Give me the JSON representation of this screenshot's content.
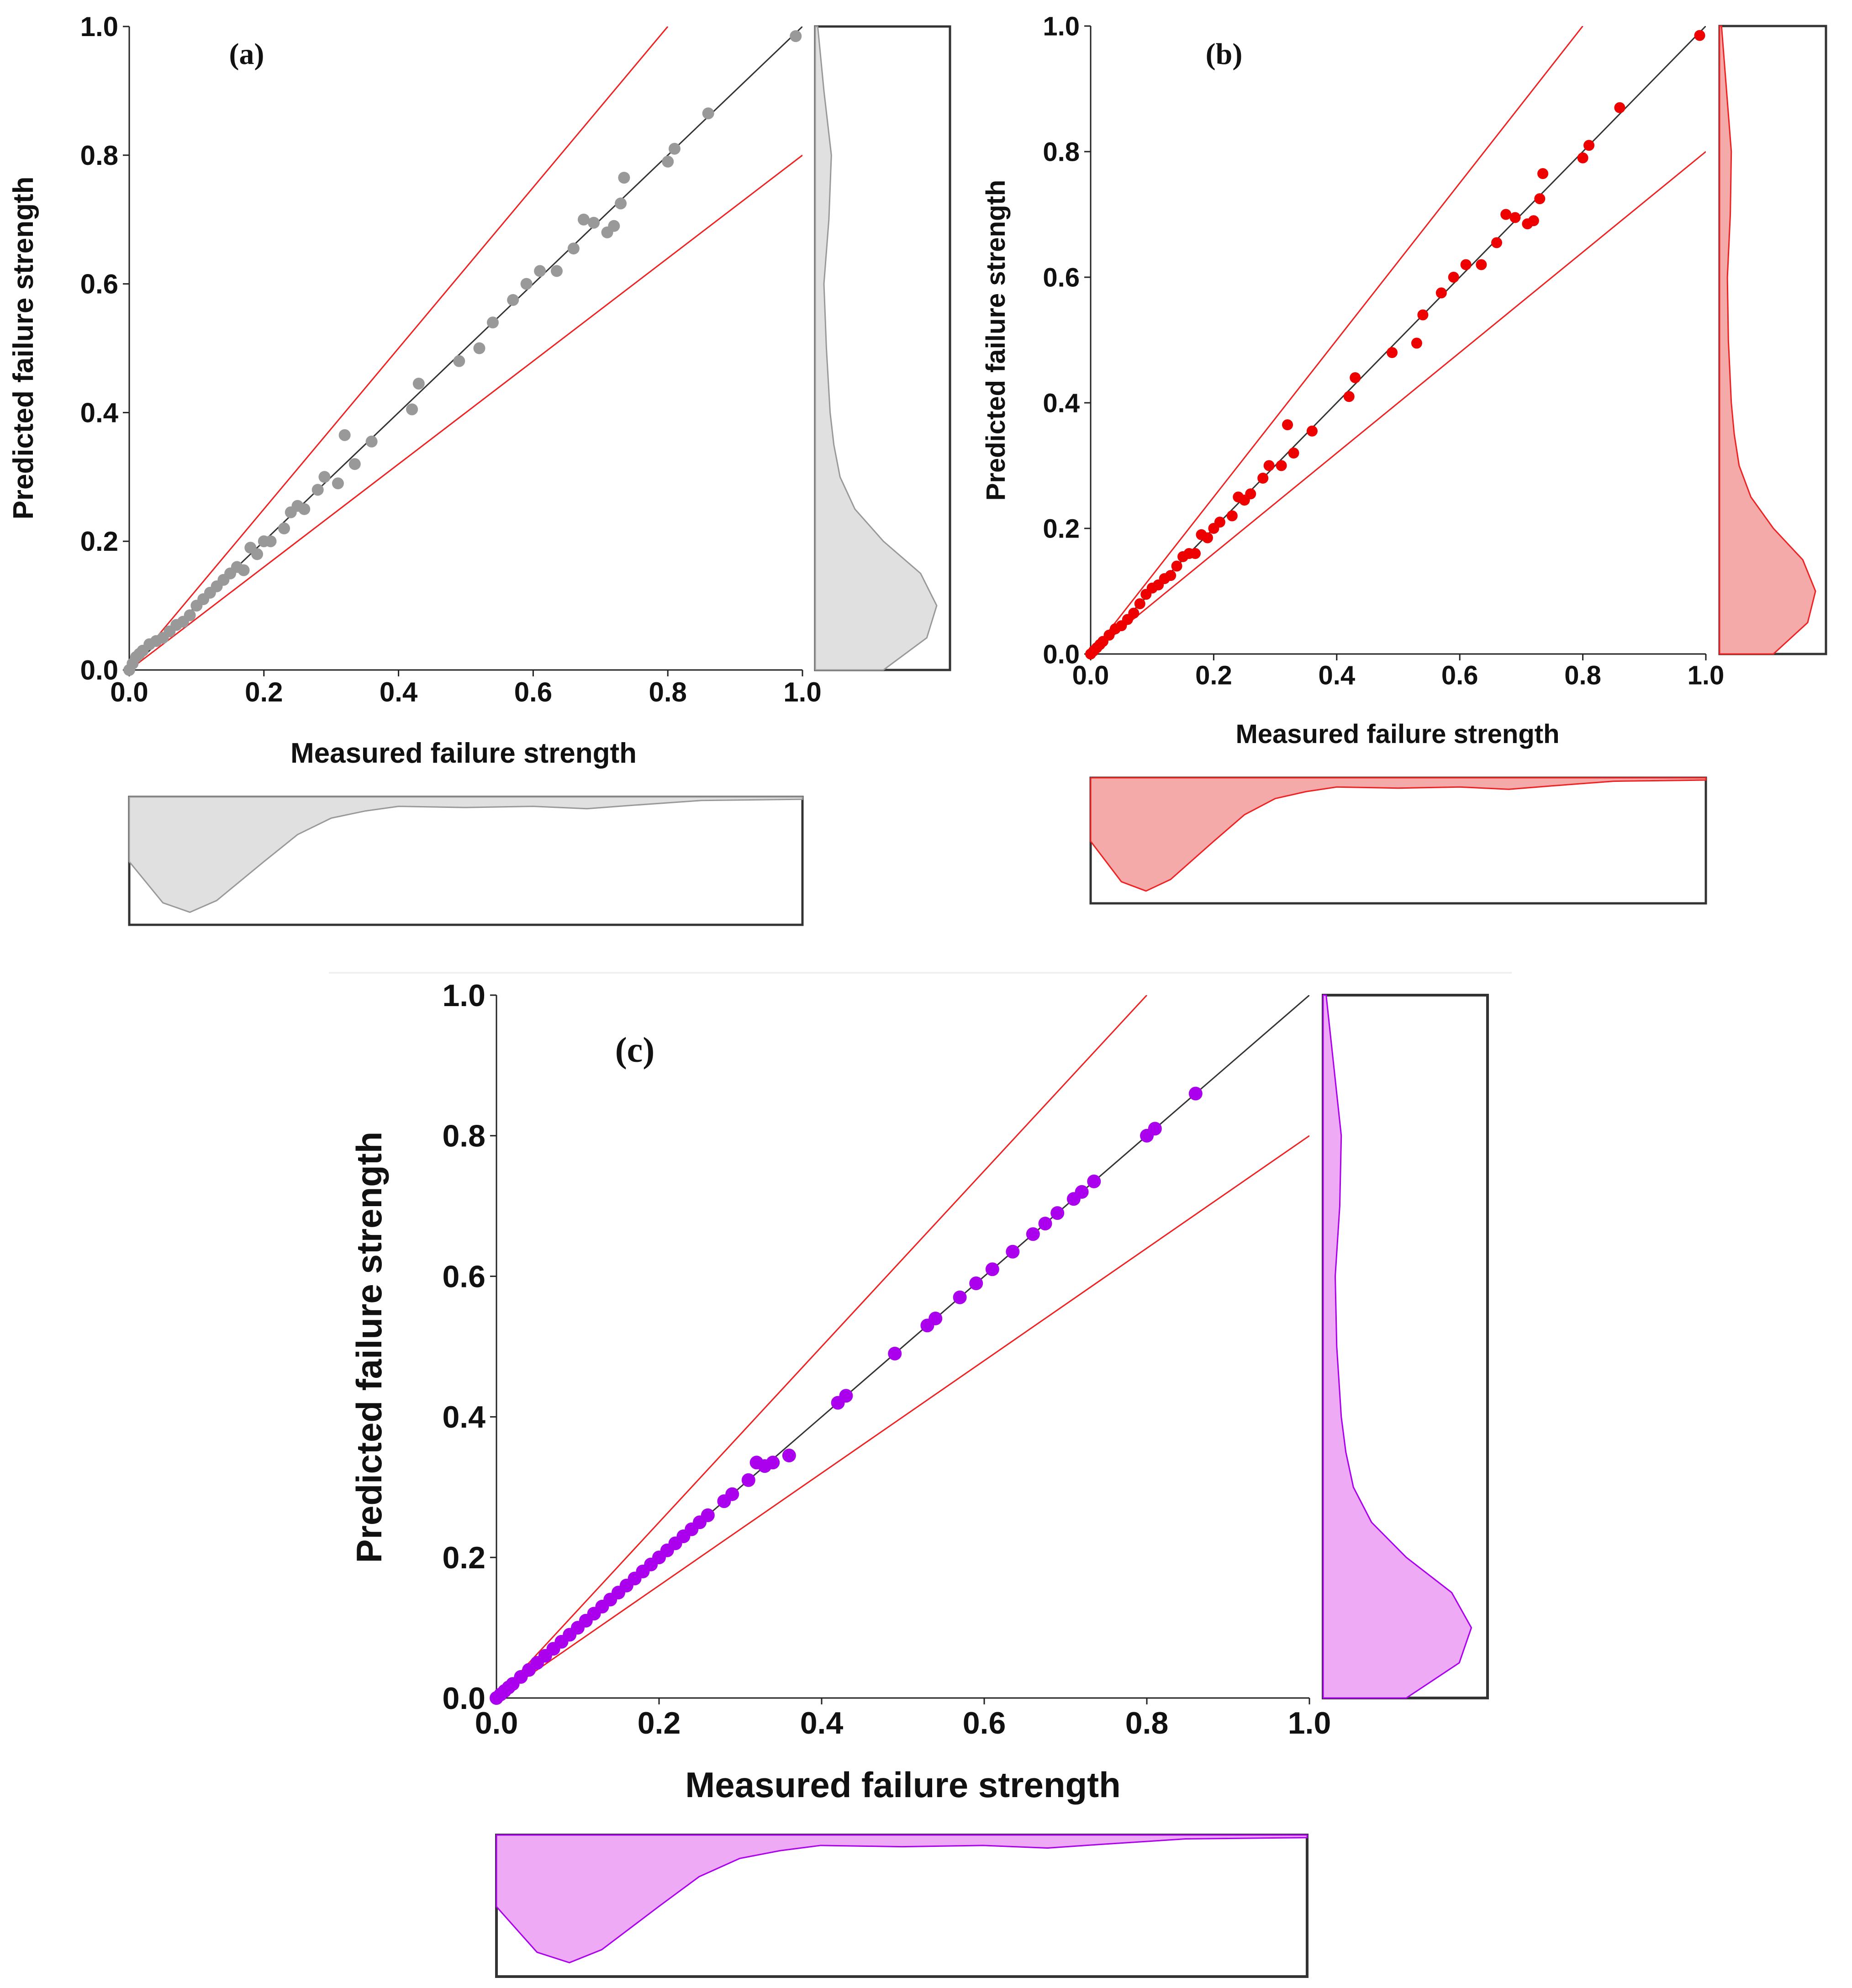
{
  "chart_data": [
    {
      "type": "scatter",
      "panel_label": "(a)",
      "xlabel": "Measured failure strength",
      "ylabel": "Predicted failure strength",
      "xlim": [
        0,
        1
      ],
      "ylim": [
        0,
        1
      ],
      "x_ticks": [
        "0.0",
        "0.2",
        "0.4",
        "0.6",
        "0.8",
        "1.0"
      ],
      "y_ticks": [
        "0.0",
        "0.2",
        "0.4",
        "0.6",
        "0.8",
        "1.0"
      ],
      "reference_lines": [
        {
          "name": "y = x",
          "slope": 1.0,
          "color": "#333333"
        },
        {
          "name": "+25% bound",
          "slope": 1.25,
          "color": "#ee2222"
        },
        {
          "name": "-20% bound",
          "slope": 0.8,
          "color": "#ee2222"
        }
      ],
      "point_color": "#999999",
      "density_fill": "#e0e0e0",
      "density_stroke": "#999999",
      "points": [
        [
          0.0,
          0.0
        ],
        [
          0.005,
          0.01
        ],
        [
          0.01,
          0.02
        ],
        [
          0.015,
          0.025
        ],
        [
          0.02,
          0.03
        ],
        [
          0.03,
          0.04
        ],
        [
          0.04,
          0.045
        ],
        [
          0.05,
          0.05
        ],
        [
          0.06,
          0.06
        ],
        [
          0.07,
          0.07
        ],
        [
          0.08,
          0.075
        ],
        [
          0.09,
          0.085
        ],
        [
          0.1,
          0.1
        ],
        [
          0.11,
          0.11
        ],
        [
          0.12,
          0.12
        ],
        [
          0.13,
          0.13
        ],
        [
          0.14,
          0.14
        ],
        [
          0.15,
          0.15
        ],
        [
          0.16,
          0.16
        ],
        [
          0.17,
          0.155
        ],
        [
          0.18,
          0.19
        ],
        [
          0.19,
          0.18
        ],
        [
          0.2,
          0.2
        ],
        [
          0.21,
          0.2
        ],
        [
          0.23,
          0.22
        ],
        [
          0.24,
          0.245
        ],
        [
          0.25,
          0.255
        ],
        [
          0.26,
          0.25
        ],
        [
          0.28,
          0.28
        ],
        [
          0.29,
          0.3
        ],
        [
          0.31,
          0.29
        ],
        [
          0.32,
          0.365
        ],
        [
          0.335,
          0.32
        ],
        [
          0.36,
          0.355
        ],
        [
          0.42,
          0.405
        ],
        [
          0.43,
          0.445
        ],
        [
          0.49,
          0.48
        ],
        [
          0.52,
          0.5
        ],
        [
          0.54,
          0.54
        ],
        [
          0.57,
          0.575
        ],
        [
          0.59,
          0.6
        ],
        [
          0.61,
          0.62
        ],
        [
          0.635,
          0.62
        ],
        [
          0.66,
          0.655
        ],
        [
          0.675,
          0.7
        ],
        [
          0.69,
          0.695
        ],
        [
          0.71,
          0.68
        ],
        [
          0.72,
          0.69
        ],
        [
          0.73,
          0.725
        ],
        [
          0.735,
          0.765
        ],
        [
          0.8,
          0.79
        ],
        [
          0.81,
          0.81
        ],
        [
          0.86,
          0.865
        ],
        [
          0.99,
          0.985
        ]
      ],
      "marginal_y_density": [
        [
          0.0,
          0.55
        ],
        [
          0.05,
          0.9
        ],
        [
          0.1,
          0.98
        ],
        [
          0.15,
          0.85
        ],
        [
          0.2,
          0.55
        ],
        [
          0.25,
          0.32
        ],
        [
          0.3,
          0.2
        ],
        [
          0.35,
          0.15
        ],
        [
          0.4,
          0.12
        ],
        [
          0.5,
          0.09
        ],
        [
          0.6,
          0.07
        ],
        [
          0.7,
          0.11
        ],
        [
          0.8,
          0.13
        ],
        [
          0.9,
          0.07
        ],
        [
          1.0,
          0.02
        ]
      ],
      "marginal_x_density": [
        [
          0.0,
          0.55
        ],
        [
          0.05,
          0.9
        ],
        [
          0.09,
          0.98
        ],
        [
          0.13,
          0.88
        ],
        [
          0.2,
          0.55
        ],
        [
          0.25,
          0.32
        ],
        [
          0.3,
          0.18
        ],
        [
          0.35,
          0.12
        ],
        [
          0.4,
          0.08
        ],
        [
          0.5,
          0.09
        ],
        [
          0.6,
          0.08
        ],
        [
          0.68,
          0.1
        ],
        [
          0.75,
          0.07
        ],
        [
          0.85,
          0.03
        ],
        [
          1.0,
          0.02
        ]
      ]
    },
    {
      "type": "scatter",
      "panel_label": "(b)",
      "xlabel": "Measured failure strength",
      "ylabel": "Predicted failure strength",
      "xlim": [
        0,
        1
      ],
      "ylim": [
        0,
        1
      ],
      "x_ticks": [
        "0.0",
        "0.2",
        "0.4",
        "0.6",
        "0.8",
        "1.0"
      ],
      "y_ticks": [
        "0.0",
        "0.2",
        "0.4",
        "0.6",
        "0.8",
        "1.0"
      ],
      "reference_lines": [
        {
          "name": "y = x",
          "slope": 1.0,
          "color": "#333333"
        },
        {
          "name": "+25% bound",
          "slope": 1.25,
          "color": "#ee2222"
        },
        {
          "name": "-20% bound",
          "slope": 0.8,
          "color": "#ee2222"
        }
      ],
      "point_color": "#ee0000",
      "density_fill": "#f5aaaa",
      "density_stroke": "#ee2222",
      "points": [
        [
          0.0,
          0.0
        ],
        [
          0.005,
          0.005
        ],
        [
          0.01,
          0.01
        ],
        [
          0.015,
          0.015
        ],
        [
          0.02,
          0.02
        ],
        [
          0.03,
          0.03
        ],
        [
          0.04,
          0.04
        ],
        [
          0.05,
          0.045
        ],
        [
          0.06,
          0.055
        ],
        [
          0.07,
          0.065
        ],
        [
          0.08,
          0.08
        ],
        [
          0.09,
          0.095
        ],
        [
          0.1,
          0.105
        ],
        [
          0.11,
          0.11
        ],
        [
          0.12,
          0.12
        ],
        [
          0.13,
          0.125
        ],
        [
          0.14,
          0.14
        ],
        [
          0.15,
          0.155
        ],
        [
          0.16,
          0.16
        ],
        [
          0.17,
          0.16
        ],
        [
          0.18,
          0.19
        ],
        [
          0.19,
          0.185
        ],
        [
          0.2,
          0.2
        ],
        [
          0.21,
          0.21
        ],
        [
          0.23,
          0.22
        ],
        [
          0.24,
          0.25
        ],
        [
          0.25,
          0.245
        ],
        [
          0.26,
          0.255
        ],
        [
          0.28,
          0.28
        ],
        [
          0.29,
          0.3
        ],
        [
          0.31,
          0.3
        ],
        [
          0.32,
          0.365
        ],
        [
          0.33,
          0.32
        ],
        [
          0.36,
          0.355
        ],
        [
          0.42,
          0.41
        ],
        [
          0.43,
          0.44
        ],
        [
          0.49,
          0.48
        ],
        [
          0.53,
          0.495
        ],
        [
          0.54,
          0.54
        ],
        [
          0.57,
          0.575
        ],
        [
          0.59,
          0.6
        ],
        [
          0.61,
          0.62
        ],
        [
          0.635,
          0.62
        ],
        [
          0.66,
          0.655
        ],
        [
          0.675,
          0.7
        ],
        [
          0.69,
          0.695
        ],
        [
          0.71,
          0.685
        ],
        [
          0.72,
          0.69
        ],
        [
          0.73,
          0.725
        ],
        [
          0.735,
          0.765
        ],
        [
          0.8,
          0.79
        ],
        [
          0.81,
          0.81
        ],
        [
          0.86,
          0.87
        ],
        [
          0.99,
          0.985
        ]
      ],
      "marginal_y_density": [
        [
          0.0,
          0.55
        ],
        [
          0.05,
          0.9
        ],
        [
          0.1,
          0.98
        ],
        [
          0.15,
          0.85
        ],
        [
          0.2,
          0.55
        ],
        [
          0.25,
          0.32
        ],
        [
          0.3,
          0.2
        ],
        [
          0.35,
          0.15
        ],
        [
          0.4,
          0.12
        ],
        [
          0.5,
          0.09
        ],
        [
          0.6,
          0.08
        ],
        [
          0.7,
          0.11
        ],
        [
          0.8,
          0.12
        ],
        [
          0.9,
          0.07
        ],
        [
          1.0,
          0.02
        ]
      ],
      "marginal_x_density": [
        [
          0.0,
          0.55
        ],
        [
          0.05,
          0.9
        ],
        [
          0.09,
          0.98
        ],
        [
          0.13,
          0.88
        ],
        [
          0.2,
          0.55
        ],
        [
          0.25,
          0.32
        ],
        [
          0.3,
          0.18
        ],
        [
          0.35,
          0.12
        ],
        [
          0.4,
          0.08
        ],
        [
          0.5,
          0.09
        ],
        [
          0.6,
          0.08
        ],
        [
          0.68,
          0.1
        ],
        [
          0.75,
          0.07
        ],
        [
          0.85,
          0.03
        ],
        [
          1.0,
          0.02
        ]
      ]
    },
    {
      "type": "scatter",
      "panel_label": "(c)",
      "xlabel": "Measured failure strength",
      "ylabel": "Predicted failure strength",
      "xlim": [
        0,
        1
      ],
      "ylim": [
        0,
        1
      ],
      "x_ticks": [
        "0.0",
        "0.2",
        "0.4",
        "0.6",
        "0.8",
        "1.0"
      ],
      "y_ticks": [
        "0.0",
        "0.2",
        "0.4",
        "0.6",
        "0.8",
        "1.0"
      ],
      "reference_lines": [
        {
          "name": "y = x",
          "slope": 1.0,
          "color": "#333333"
        },
        {
          "name": "+25% bound",
          "slope": 1.25,
          "color": "#ee2222"
        },
        {
          "name": "-20% bound",
          "slope": 0.8,
          "color": "#ee2222"
        }
      ],
      "point_color": "#aa00ee",
      "density_fill": "#eeaaf5",
      "density_stroke": "#aa00ee",
      "points": [
        [
          0.0,
          0.0
        ],
        [
          0.005,
          0.005
        ],
        [
          0.01,
          0.01
        ],
        [
          0.015,
          0.015
        ],
        [
          0.02,
          0.02
        ],
        [
          0.03,
          0.03
        ],
        [
          0.04,
          0.04
        ],
        [
          0.05,
          0.05
        ],
        [
          0.06,
          0.06
        ],
        [
          0.07,
          0.07
        ],
        [
          0.08,
          0.08
        ],
        [
          0.09,
          0.09
        ],
        [
          0.1,
          0.1
        ],
        [
          0.11,
          0.11
        ],
        [
          0.12,
          0.12
        ],
        [
          0.13,
          0.13
        ],
        [
          0.14,
          0.14
        ],
        [
          0.15,
          0.15
        ],
        [
          0.16,
          0.16
        ],
        [
          0.17,
          0.17
        ],
        [
          0.18,
          0.18
        ],
        [
          0.19,
          0.19
        ],
        [
          0.2,
          0.2
        ],
        [
          0.21,
          0.21
        ],
        [
          0.22,
          0.22
        ],
        [
          0.23,
          0.23
        ],
        [
          0.24,
          0.24
        ],
        [
          0.25,
          0.25
        ],
        [
          0.26,
          0.26
        ],
        [
          0.28,
          0.28
        ],
        [
          0.29,
          0.29
        ],
        [
          0.31,
          0.31
        ],
        [
          0.32,
          0.335
        ],
        [
          0.33,
          0.33
        ],
        [
          0.34,
          0.335
        ],
        [
          0.36,
          0.345
        ],
        [
          0.42,
          0.42
        ],
        [
          0.43,
          0.43
        ],
        [
          0.49,
          0.49
        ],
        [
          0.53,
          0.53
        ],
        [
          0.54,
          0.54
        ],
        [
          0.57,
          0.57
        ],
        [
          0.59,
          0.59
        ],
        [
          0.61,
          0.61
        ],
        [
          0.635,
          0.635
        ],
        [
          0.66,
          0.66
        ],
        [
          0.675,
          0.675
        ],
        [
          0.69,
          0.69
        ],
        [
          0.71,
          0.71
        ],
        [
          0.72,
          0.72
        ],
        [
          0.735,
          0.735
        ],
        [
          0.8,
          0.8
        ],
        [
          0.81,
          0.81
        ],
        [
          0.86,
          0.86
        ]
      ],
      "marginal_y_density": [
        [
          0.0,
          0.55
        ],
        [
          0.05,
          0.9
        ],
        [
          0.1,
          0.98
        ],
        [
          0.15,
          0.85
        ],
        [
          0.2,
          0.55
        ],
        [
          0.25,
          0.32
        ],
        [
          0.3,
          0.2
        ],
        [
          0.35,
          0.15
        ],
        [
          0.4,
          0.12
        ],
        [
          0.5,
          0.09
        ],
        [
          0.6,
          0.08
        ],
        [
          0.7,
          0.11
        ],
        [
          0.8,
          0.12
        ],
        [
          0.9,
          0.07
        ],
        [
          1.0,
          0.02
        ]
      ],
      "marginal_x_density": [
        [
          0.0,
          0.55
        ],
        [
          0.05,
          0.9
        ],
        [
          0.09,
          0.98
        ],
        [
          0.13,
          0.88
        ],
        [
          0.2,
          0.55
        ],
        [
          0.25,
          0.32
        ],
        [
          0.3,
          0.18
        ],
        [
          0.35,
          0.12
        ],
        [
          0.4,
          0.08
        ],
        [
          0.5,
          0.09
        ],
        [
          0.6,
          0.08
        ],
        [
          0.68,
          0.1
        ],
        [
          0.75,
          0.07
        ],
        [
          0.85,
          0.03
        ],
        [
          1.0,
          0.02
        ]
      ]
    }
  ]
}
